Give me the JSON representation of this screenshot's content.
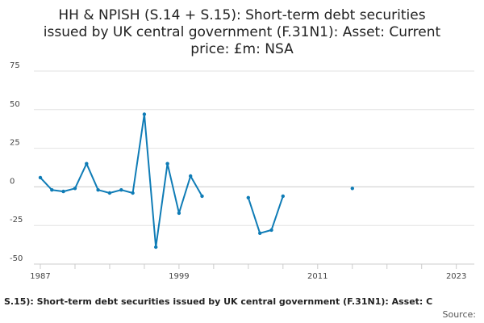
{
  "chart_data": {
    "type": "line",
    "title_lines": [
      "HH & NPISH (S.14 + S.15): Short-term debt securities",
      "issued by UK central government (F.31N1): Asset: Current",
      "price: £m: NSA"
    ],
    "caption": "S.15): Short-term debt securities issued by UK central government (F.31N1): Asset: C",
    "source_label": "Source:",
    "xlabel": "",
    "ylabel": "",
    "xlim": [
      1987,
      2024
    ],
    "ylim": [
      -50,
      75
    ],
    "y_ticks": [
      75,
      50,
      25,
      0,
      -25,
      -50
    ],
    "x_tick_labels": [
      {
        "value": 1987,
        "label": "1987"
      },
      {
        "value": 1999,
        "label": "1999"
      },
      {
        "value": 2011,
        "label": "2011"
      },
      {
        "value": 2023,
        "label": "2023"
      }
    ],
    "x_minor_ticks": [
      1987,
      1990,
      1993,
      1996,
      1999,
      2002,
      2005,
      2008,
      2011,
      2014,
      2017,
      2020,
      2023
    ],
    "grid": true,
    "series_color": "#0f7cb6",
    "points": [
      {
        "x": 1987,
        "y": 6
      },
      {
        "x": 1988,
        "y": -2
      },
      {
        "x": 1989,
        "y": -3
      },
      {
        "x": 1990,
        "y": -1
      },
      {
        "x": 1991,
        "y": 15
      },
      {
        "x": 1992,
        "y": -2
      },
      {
        "x": 1993,
        "y": -4
      },
      {
        "x": 1994,
        "y": -2
      },
      {
        "x": 1995,
        "y": -4
      },
      {
        "x": 1996,
        "y": 47
      },
      {
        "x": 1997,
        "y": -39
      },
      {
        "x": 1998,
        "y": 15
      },
      {
        "x": 1999,
        "y": -17
      },
      {
        "x": 2000,
        "y": 7
      },
      {
        "x": 2001,
        "y": -6
      },
      {
        "x": 2002,
        "y": null
      },
      {
        "x": 2003,
        "y": null
      },
      {
        "x": 2004,
        "y": null
      },
      {
        "x": 2005,
        "y": -7
      },
      {
        "x": 2006,
        "y": -30
      },
      {
        "x": 2007,
        "y": -28
      },
      {
        "x": 2008,
        "y": -6
      },
      {
        "x": 2009,
        "y": null
      },
      {
        "x": 2010,
        "y": null
      },
      {
        "x": 2011,
        "y": null
      },
      {
        "x": 2012,
        "y": null
      },
      {
        "x": 2013,
        "y": null
      },
      {
        "x": 2014,
        "y": -1
      }
    ]
  }
}
